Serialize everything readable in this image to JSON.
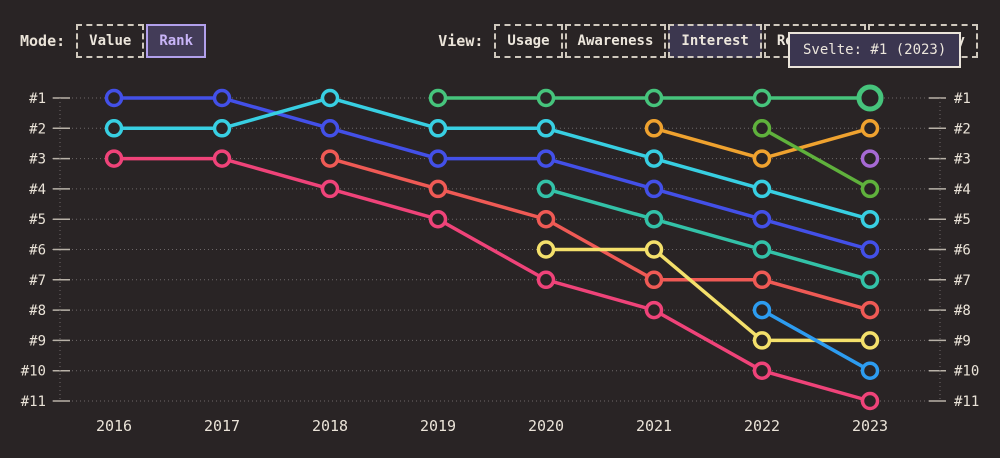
{
  "header": {
    "mode": {
      "label": "Mode:",
      "options": [
        {
          "label": "Value",
          "selected": false
        },
        {
          "label": "Rank",
          "selected": true
        }
      ]
    },
    "view": {
      "label": "View:",
      "options": [
        {
          "label": "Usage",
          "selected": false
        },
        {
          "label": "Awareness",
          "selected": false
        },
        {
          "label": "Interest",
          "selected": true
        },
        {
          "label": "Retention",
          "selected": false
        },
        {
          "label": "Positivity",
          "selected": false
        }
      ]
    }
  },
  "tooltip": {
    "text": "Svelte: #1 (2023)"
  },
  "colors": {
    "background": "#292425",
    "text": "#eae3d8",
    "grid": "#6e6869",
    "tick": "#b9b2a8",
    "selected_mode_bg": "#433c58",
    "selected_mode_text": "#c9b5f8",
    "tooltip_bg": "#3b3650"
  },
  "chart_data": {
    "type": "line",
    "variant": "bump-rank-chart",
    "title": "",
    "xlabel": "",
    "ylabel": "",
    "x_labels": [
      "2016",
      "2017",
      "2018",
      "2019",
      "2020",
      "2021",
      "2022",
      "2023"
    ],
    "y_tick_labels": [
      "#1",
      "#2",
      "#3",
      "#4",
      "#5",
      "#6",
      "#7",
      "#8",
      "#9",
      "#10",
      "#11"
    ],
    "ylim": [
      1,
      11
    ],
    "y_inverted": true,
    "grid": "dotted-horizontal",
    "legend": "none",
    "series": [
      {
        "name": "series-indigo",
        "color": "#4350e8",
        "start": 0,
        "ranks": [
          1,
          1,
          2,
          3,
          3,
          4,
          5,
          6
        ]
      },
      {
        "name": "series-cyan",
        "color": "#38cfe2",
        "start": 0,
        "ranks": [
          2,
          2,
          1,
          2,
          2,
          3,
          4,
          5
        ]
      },
      {
        "name": "series-pink",
        "color": "#ef4379",
        "start": 0,
        "ranks": [
          3,
          3,
          4,
          5,
          7,
          8,
          10,
          11
        ]
      },
      {
        "name": "series-red",
        "color": "#ef5a55",
        "start": 2,
        "ranks": [
          3,
          4,
          5,
          7,
          7,
          8
        ]
      },
      {
        "name": "series-teal",
        "color": "#33c2a8",
        "start": 4,
        "ranks": [
          4,
          5,
          6,
          7
        ]
      },
      {
        "name": "series-yellow",
        "color": "#f4e06b",
        "start": 4,
        "ranks": [
          6,
          6,
          9,
          9
        ]
      },
      {
        "name": "series-orange",
        "color": "#efa22f",
        "start": 5,
        "ranks": [
          2,
          3,
          2
        ]
      },
      {
        "name": "series-lime",
        "color": "#5fb13c",
        "start": 6,
        "ranks": [
          2,
          4
        ]
      },
      {
        "name": "series-sky",
        "color": "#2d9cf0",
        "start": 6,
        "ranks": [
          8,
          10
        ]
      },
      {
        "name": "series-purple",
        "color": "#a669d4",
        "start": 7,
        "ranks": [
          3
        ]
      },
      {
        "name": "svelte",
        "color": "#46c47c",
        "start": 3,
        "ranks": [
          1,
          1,
          1,
          1,
          1
        ],
        "highlight_last": true
      }
    ]
  }
}
